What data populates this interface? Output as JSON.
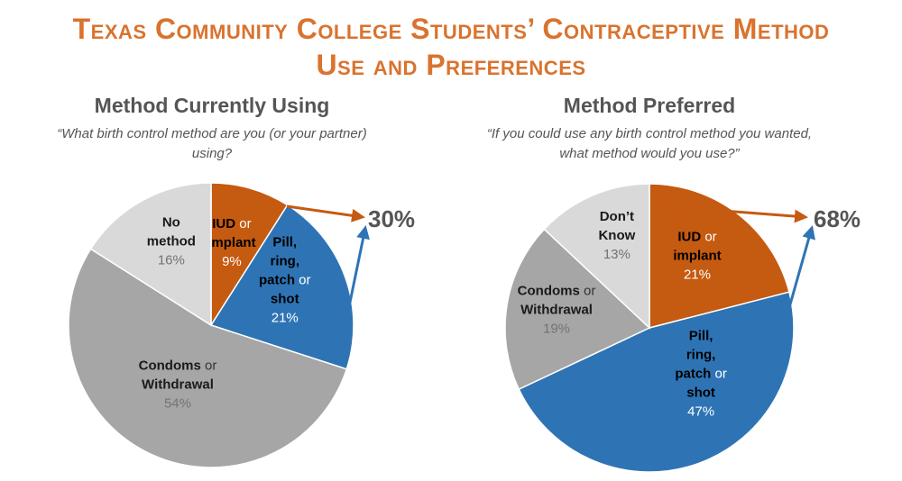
{
  "title_line1": "Texas Community College Students’ Contraceptive Method",
  "title_line2": "Use and Preferences",
  "colors": {
    "iud": "#c55a11",
    "pill": "#2e74b5",
    "condoms": "#a6a6a6",
    "none": "#d9d9d9",
    "title": "#d9732e",
    "text": "#555555"
  },
  "chart_data": [
    {
      "type": "pie",
      "title": "Method Currently Using",
      "subtitle_line1": "“What birth control method are you (or your partner)",
      "subtitle_line2": "using?",
      "slices": [
        {
          "label_parts": [
            "IUD",
            " or",
            "implant"
          ],
          "value": 9,
          "pct": "9%",
          "color": "#c55a11"
        },
        {
          "label_parts": [
            "Pill,",
            "ring,",
            "patch",
            " or",
            "shot"
          ],
          "value": 21,
          "pct": "21%",
          "color": "#2e74b5"
        },
        {
          "label_parts": [
            "Condoms",
            " or",
            "Withdrawal"
          ],
          "value": 54,
          "pct": "54%",
          "color": "#a6a6a6"
        },
        {
          "label_parts": [
            "No",
            "method"
          ],
          "value": 16,
          "pct": "16%",
          "color": "#d9d9d9"
        }
      ],
      "callout": "30%"
    },
    {
      "type": "pie",
      "title": "Method Preferred",
      "subtitle_line1": "“If you could use any birth control method you wanted,",
      "subtitle_line2": "what method would you use?”",
      "slices": [
        {
          "label_parts": [
            "IUD",
            " or",
            "implant"
          ],
          "value": 21,
          "pct": "21%",
          "color": "#c55a11"
        },
        {
          "label_parts": [
            "Pill,",
            "ring,",
            "patch",
            " or",
            "shot"
          ],
          "value": 47,
          "pct": "47%",
          "color": "#2e74b5"
        },
        {
          "label_parts": [
            "Condoms",
            " or",
            "Withdrawal"
          ],
          "value": 19,
          "pct": "19%",
          "color": "#a6a6a6"
        },
        {
          "label_parts": [
            "Don’t",
            "Know"
          ],
          "value": 13,
          "pct": "13%",
          "color": "#d9d9d9"
        }
      ],
      "callout": "68%"
    }
  ]
}
